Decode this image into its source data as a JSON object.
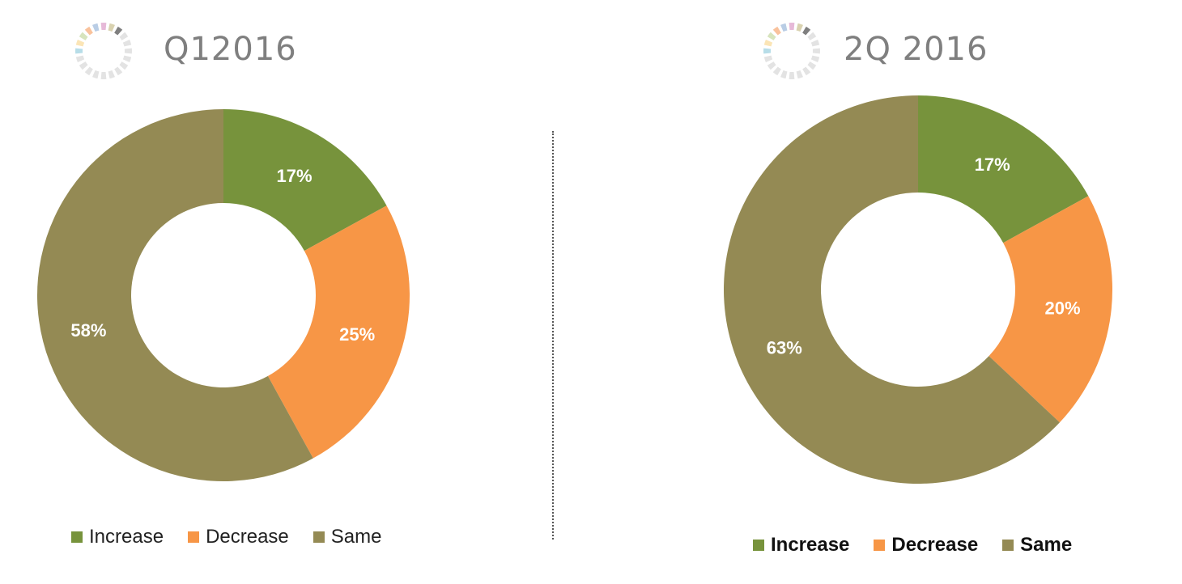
{
  "colors": {
    "increase": "#77933c",
    "decrease": "#f79646",
    "same": "#948a54",
    "title": "#7f7f7f",
    "label": "#ffffff"
  },
  "chart_data": [
    {
      "type": "pie",
      "donut": true,
      "title": "Q12016",
      "categories": [
        "Increase",
        "Decrease",
        "Same"
      ],
      "values": [
        17,
        25,
        58
      ],
      "labels": [
        "17%",
        "25%",
        "58%"
      ],
      "legend": "bottom"
    },
    {
      "type": "pie",
      "donut": true,
      "title": "2Q 2016",
      "categories": [
        "Increase",
        "Decrease",
        "Same"
      ],
      "values": [
        17,
        20,
        63
      ],
      "labels": [
        "17%",
        "20%",
        "63%"
      ],
      "legend": "bottom"
    }
  ]
}
